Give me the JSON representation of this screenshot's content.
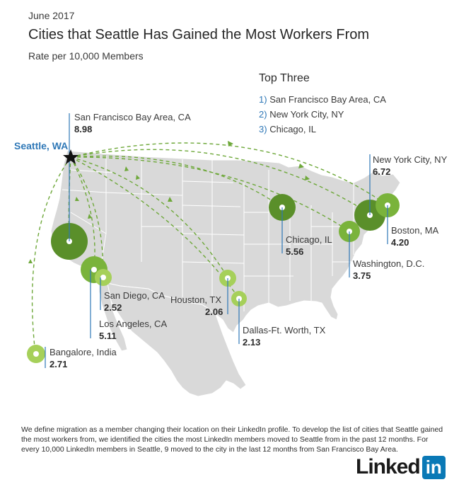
{
  "header": {
    "date": "June 2017",
    "title": "Cities that Seattle Has Gained the Most Workers From",
    "subtitle": "Rate per 10,000 Members"
  },
  "top_three": {
    "heading": "Top Three",
    "items": [
      {
        "rank": "1)",
        "name": "San Francisco Bay Area, CA"
      },
      {
        "rank": "2)",
        "name": "New York City, NY"
      },
      {
        "rank": "3)",
        "name": "Chicago, IL"
      }
    ]
  },
  "origin": {
    "name": "Seattle, WA"
  },
  "cities": [
    {
      "name": "San Francisco Bay Area, CA",
      "value": "8.98"
    },
    {
      "name": "New York City, NY",
      "value": "6.72"
    },
    {
      "name": "Chicago, IL",
      "value": "5.56"
    },
    {
      "name": "Boston, MA",
      "value": "4.20"
    },
    {
      "name": "Washington, D.C.",
      "value": "3.75"
    },
    {
      "name": "San Diego, CA",
      "value": "2.52"
    },
    {
      "name": "Los Angeles, CA",
      "value": "5.11"
    },
    {
      "name": "Houston, TX",
      "value": "2.06"
    },
    {
      "name": "Dallas-Ft. Worth, TX",
      "value": "2.13"
    },
    {
      "name": "Bangalore, India",
      "value": "2.71"
    }
  ],
  "colors": {
    "map_fill": "#d9d9d9",
    "dark_green": "#5a8f2a",
    "mid_green": "#7ab33b",
    "light_green": "#a6d05a",
    "accent_blue": "#2f78b7"
  },
  "footnote": "We define migration as a member changing their location on their LinkedIn profile. To develop the list of cities that Seattle gained the most workers from, we identified the cities the most LinkedIn members moved to Seattle from in the past 12 months. For every 10,000 LinkedIn members in Seattle, 9 moved to the city in the last 12 months from San Francisco Bay Area.",
  "logo": {
    "word": "Linked",
    "box": "in"
  }
}
